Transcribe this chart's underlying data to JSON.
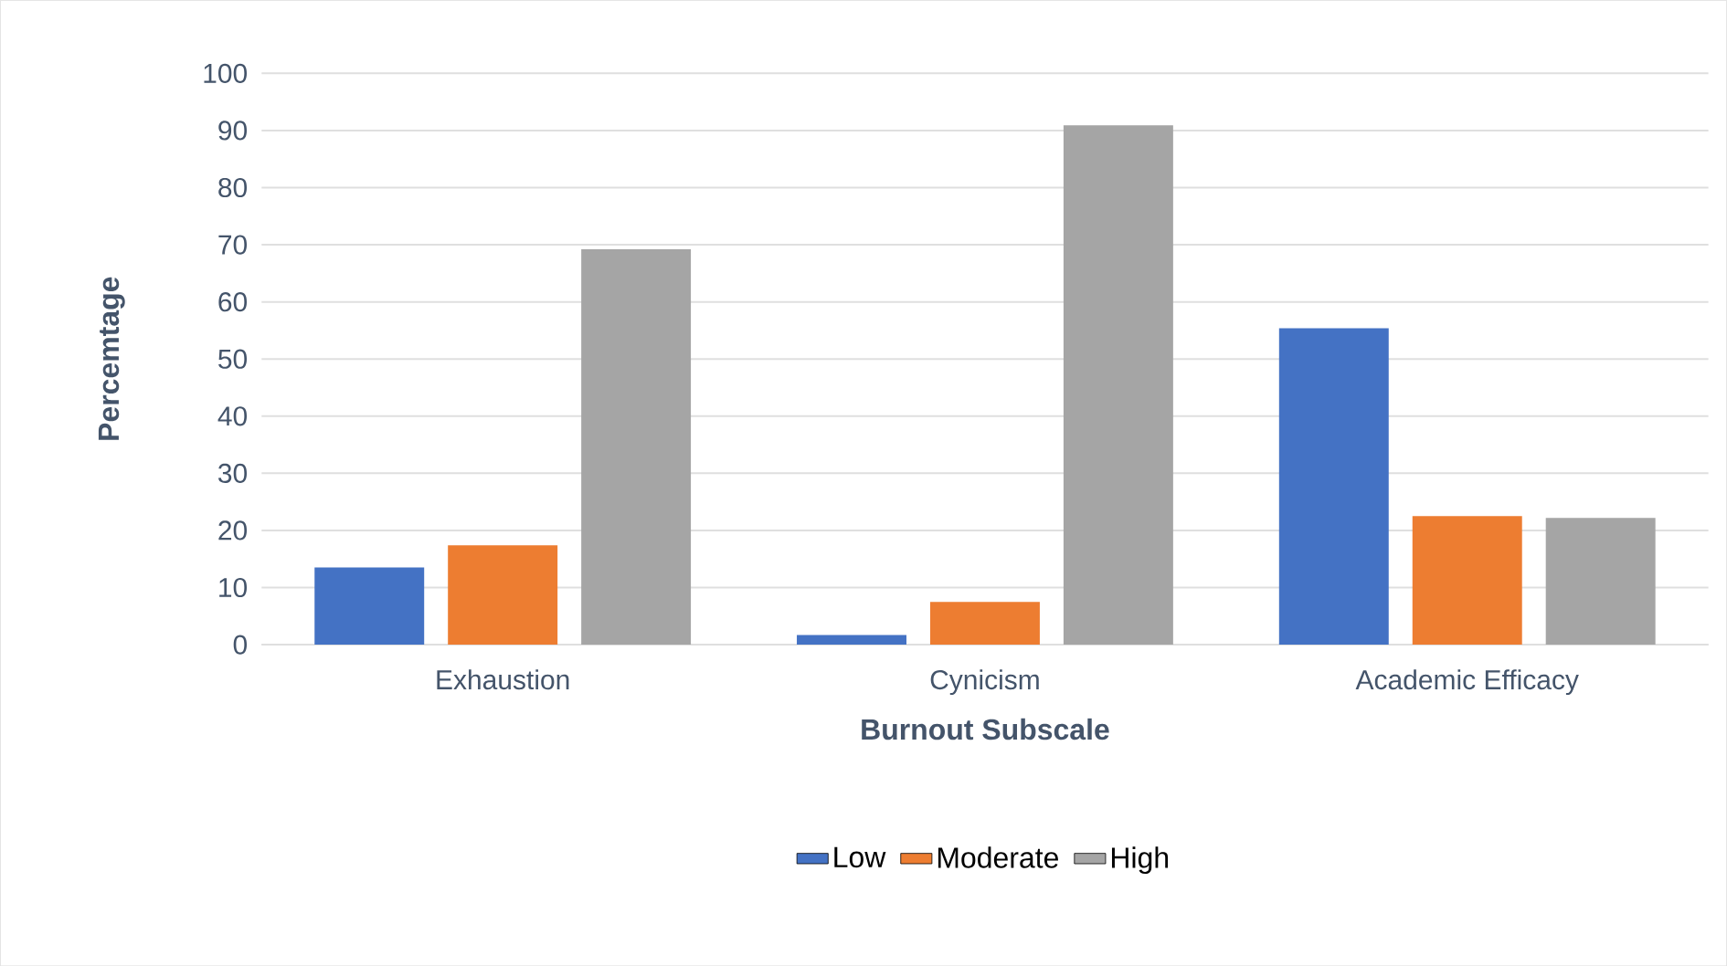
{
  "chart_data": {
    "type": "bar",
    "xlabel": "Burnout Subscale",
    "ylabel": "Percemtage",
    "categories": [
      "Exhaustion",
      "Cynicism",
      "Academic Efficacy"
    ],
    "series": [
      {
        "name": "Low",
        "color": "#4472c4",
        "values": [
          13.5,
          1.7,
          55.4
        ]
      },
      {
        "name": "Moderate",
        "color": "#ed7d31",
        "values": [
          17.4,
          7.5,
          22.5
        ]
      },
      {
        "name": "High",
        "color": "#a5a5a5",
        "values": [
          69.2,
          90.9,
          22.2
        ]
      }
    ],
    "ylim": [
      0,
      100
    ],
    "yticks": [
      0,
      10,
      20,
      30,
      40,
      50,
      60,
      70,
      80,
      90,
      100
    ],
    "grid": "y",
    "legend": "bottom"
  }
}
